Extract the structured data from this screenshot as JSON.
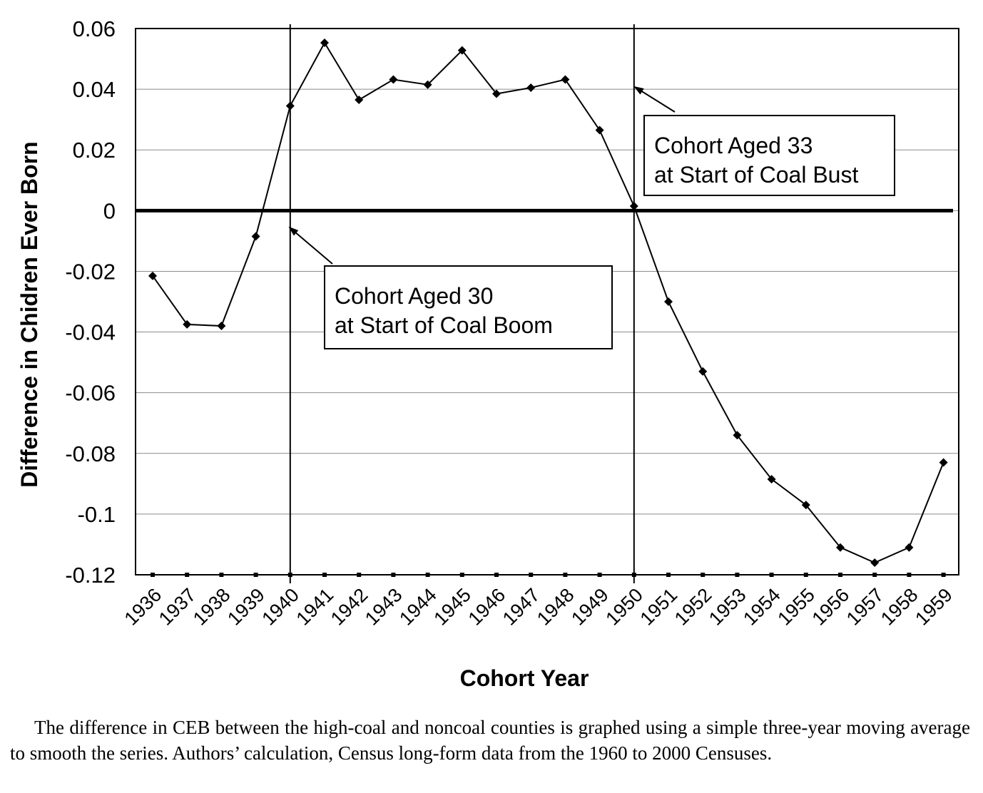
{
  "chart_data": {
    "type": "line",
    "xlabel": "Cohort Year",
    "ylabel": "Difference in Chidren Ever Born",
    "ylim": [
      -0.12,
      0.06
    ],
    "yticks": [
      "0.06",
      "0.04",
      "0.02",
      "0",
      "-0.02",
      "-0.04",
      "-0.06",
      "-0.08",
      "-0.1",
      "-0.12"
    ],
    "ytick_values": [
      0.06,
      0.04,
      0.02,
      0,
      -0.02,
      -0.04,
      -0.06,
      -0.08,
      -0.1,
      -0.12
    ],
    "categories": [
      "1936",
      "1937",
      "1938",
      "1939",
      "1940",
      "1941",
      "1942",
      "1943",
      "1944",
      "1945",
      "1946",
      "1947",
      "1948",
      "1949",
      "1950",
      "1951",
      "1952",
      "1953",
      "1954",
      "1955",
      "1956",
      "1957",
      "1958",
      "1959"
    ],
    "values": [
      -0.0215,
      -0.0375,
      -0.038,
      -0.0085,
      0.0345,
      0.0553,
      0.0365,
      0.0432,
      0.0415,
      0.0528,
      0.0385,
      0.0405,
      0.0432,
      0.0265,
      0.0015,
      -0.03,
      -0.053,
      -0.074,
      -0.0885,
      -0.097,
      -0.111,
      -0.116,
      -0.111,
      -0.083
    ],
    "vlines": [
      "1940",
      "1950"
    ],
    "hline": 0,
    "grid": true,
    "legend": "none",
    "annotations": [
      {
        "id": "boom",
        "lines": [
          "Cohort Aged 30",
          "at Start of Coal Boom"
        ],
        "points_to": "1940"
      },
      {
        "id": "bust",
        "lines": [
          "Cohort Aged 33",
          "at Start of Coal Bust"
        ],
        "points_to": "1950"
      }
    ]
  },
  "caption": "The difference in CEB between the high-coal and noncoal counties is graphed using a simple three-year moving average to smooth the series. Authors’ calculation, Census long-form data from the 1960 to 2000 Censuses."
}
